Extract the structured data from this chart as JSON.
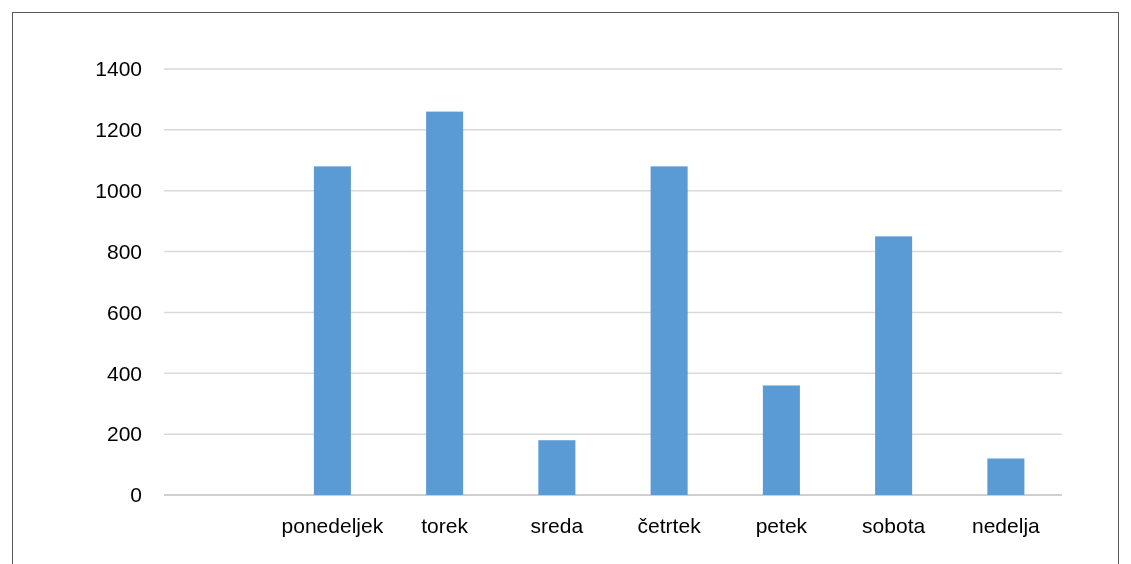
{
  "chart_data": {
    "type": "bar",
    "categories": [
      null,
      "ponedeljek",
      "torek",
      "sreda",
      "četrtek",
      "petek",
      "sobota",
      "nedelja"
    ],
    "values": [
      null,
      1080,
      1260,
      180,
      1080,
      360,
      850,
      120
    ],
    "color": "#5b9bd5",
    "ylim": [
      0,
      1400
    ],
    "yticks": [
      0,
      200,
      400,
      600,
      800,
      1000,
      1200,
      1400
    ],
    "grid": "y"
  }
}
